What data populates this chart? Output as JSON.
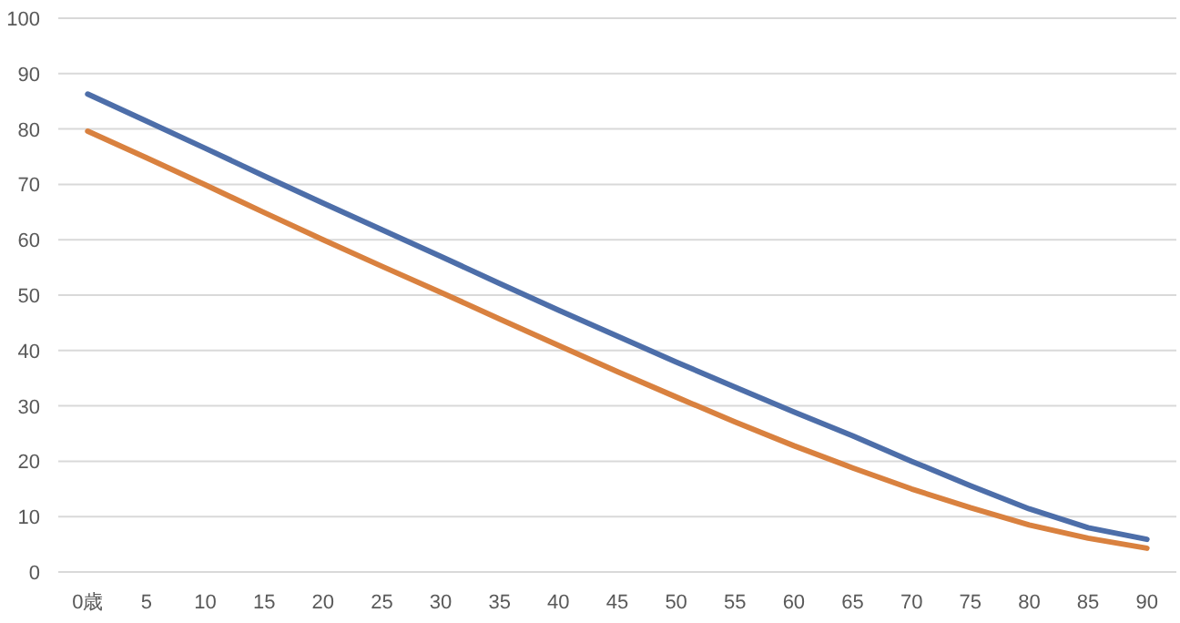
{
  "chart_data": {
    "type": "line",
    "categories": [
      "0歳",
      "5",
      "10",
      "15",
      "20",
      "25",
      "30",
      "35",
      "40",
      "45",
      "50",
      "55",
      "60",
      "65",
      "70",
      "75",
      "80",
      "85",
      "90"
    ],
    "series": [
      {
        "color": "#4d6ea9",
        "values": [
          86.3,
          81.4,
          76.5,
          71.5,
          66.6,
          61.8,
          57.0,
          52.1,
          47.3,
          42.6,
          37.9,
          33.4,
          28.9,
          24.6,
          20.0,
          15.6,
          11.4,
          8.0,
          5.9
        ]
      },
      {
        "color": "#d9813f",
        "values": [
          79.6,
          74.8,
          69.9,
          64.9,
          60.0,
          55.2,
          50.5,
          45.7,
          40.9,
          36.2,
          31.6,
          27.1,
          22.8,
          18.8,
          15.0,
          11.6,
          8.5,
          6.1,
          4.3
        ]
      }
    ],
    "ylim": [
      0,
      100
    ],
    "yticks": [
      0,
      10,
      20,
      30,
      40,
      50,
      60,
      70,
      80,
      90,
      100
    ],
    "grid": "y"
  }
}
